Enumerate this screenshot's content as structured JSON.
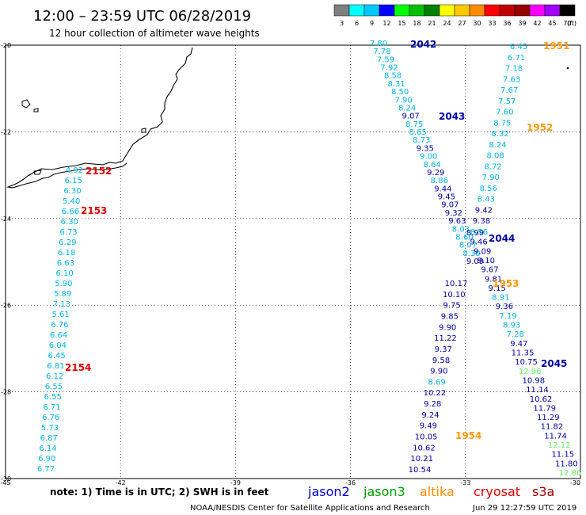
{
  "header": {
    "title": "12:00 – 23:59 UTC 06/28/2019",
    "subtitle": "12 hour collection of altimeter wave heights"
  },
  "legend": {
    "unit": "(ft)",
    "labels": [
      "3",
      "6",
      "9",
      "12",
      "15",
      "18",
      "21",
      "24",
      "27",
      "30",
      "33",
      "36",
      "39",
      "42",
      "45",
      "70"
    ],
    "colors": [
      "#7f7f7f",
      "#00ffff",
      "#00c8ff",
      "#0000ff",
      "#00ff00",
      "#00c000",
      "#008000",
      "#ffff00",
      "#ffc800",
      "#ff8c00",
      "#ff0000",
      "#c00000",
      "#960000",
      "#ff00ff",
      "#a000ff",
      "#000000"
    ]
  },
  "axes": {
    "y_ticks": [
      "-20",
      "-22",
      "-24",
      "-26",
      "-28",
      "-30"
    ],
    "x_ticks": [
      "-45",
      "-42",
      "-39",
      "-36",
      "-33",
      "-30"
    ]
  },
  "note": {
    "text": "note: 1) Time is in UTC; 2) SWH is in feet",
    "satellites": [
      {
        "name": "jason2",
        "color": "#0000d0"
      },
      {
        "name": "jason3",
        "color": "#00a000"
      },
      {
        "name": "altika",
        "color": "#ff8c00"
      },
      {
        "name": "cryosat",
        "color": "#e00000"
      },
      {
        "name": "s3a",
        "color": "#a00000"
      }
    ]
  },
  "footer": {
    "credit": "NOAA/NESDIS Center for Satellite Applications and Research",
    "timestamp": "Jun 29 12:27:59 UTC 2019"
  },
  "colors": {
    "cyan": "#00b4e6",
    "navy": "#0000a0",
    "orange": "#ff9900",
    "red": "#e00000",
    "lightgreen": "#66ee66"
  },
  "passes": [
    {
      "id": "2042",
      "color": "navy",
      "values": [
        "7.80",
        "7.78",
        "7.59",
        "7.92",
        "8.58",
        "8.31",
        "8.50",
        "7.90",
        "8.24",
        "9.07",
        "8.75",
        "8.65",
        "8.73",
        "9.35",
        "9.00",
        "8.64",
        "9.29",
        "8.86",
        "9.44",
        "9.45",
        "9.07",
        "9.32",
        "9.63",
        "8.03",
        "8.60",
        "8.07",
        "8.30",
        "9.09"
      ],
      "value_colors": [
        "cyan",
        "cyan",
        "cyan",
        "cyan",
        "cyan",
        "cyan",
        "cyan",
        "cyan",
        "cyan",
        "navy",
        "cyan",
        "cyan",
        "cyan",
        "navy",
        "cyan",
        "cyan",
        "navy",
        "cyan",
        "navy",
        "navy",
        "navy",
        "navy",
        "navy",
        "cyan",
        "cyan",
        "cyan",
        "cyan",
        "navy"
      ]
    },
    {
      "id": "2043",
      "color": "navy",
      "values": [],
      "value_colors": []
    },
    {
      "id": "2044",
      "color": "navy",
      "values": [
        "8.99",
        "9.46",
        "9.09",
        "9.10",
        "9.67",
        "9.81",
        "9.15",
        "8.91",
        "9.36",
        "7.19",
        "8.93",
        "7.28",
        "9.47",
        "11.35",
        "10.75",
        "12.96",
        "10.98",
        "11.14",
        "10.62",
        "11.79",
        "11.29",
        "11.82",
        "11.74",
        "12.12",
        "11.15",
        "11.80",
        "12.86"
      ],
      "value_colors": [
        "navy",
        "navy",
        "navy",
        "navy",
        "navy",
        "navy",
        "navy",
        "cyan",
        "navy",
        "cyan",
        "cyan",
        "cyan",
        "navy",
        "navy",
        "navy",
        "lightgreen",
        "navy",
        "navy",
        "navy",
        "navy",
        "navy",
        "navy",
        "navy",
        "lightgreen",
        "navy",
        "navy",
        "lightgreen"
      ]
    },
    {
      "id": "2045",
      "color": "navy",
      "values": [
        "10.17",
        "10.10",
        "9.75",
        "9.85",
        "9.90",
        "11.22",
        "9.37",
        "9.58",
        "9.90",
        "8.69",
        "10.22",
        "9.28",
        "9.24",
        "9.49",
        "10.05",
        "10.62",
        "10.21",
        "10.54"
      ],
      "value_colors": [
        "navy",
        "navy",
        "navy",
        "navy",
        "navy",
        "navy",
        "navy",
        "navy",
        "navy",
        "cyan",
        "navy",
        "navy",
        "navy",
        "navy",
        "navy",
        "navy",
        "navy",
        "navy"
      ]
    },
    {
      "id": "1951",
      "color": "orange",
      "values": [
        "6.45",
        "6.71",
        "7.18",
        "7.63",
        "7.67",
        "7.57",
        "7.60",
        "8.75",
        "8.32",
        "8.24",
        "8.08",
        "8.72",
        "7.90",
        "8.56",
        "8.43",
        "9.42",
        "9.38",
        "8.56"
      ],
      "value_colors": [
        "cyan",
        "cyan",
        "cyan",
        "cyan",
        "cyan",
        "cyan",
        "cyan",
        "cyan",
        "cyan",
        "cyan",
        "cyan",
        "cyan",
        "cyan",
        "cyan",
        "cyan",
        "navy",
        "navy",
        "cyan"
      ]
    },
    {
      "id": "1952",
      "color": "orange",
      "values": [],
      "value_colors": []
    },
    {
      "id": "1953",
      "color": "orange",
      "values": [],
      "value_colors": []
    },
    {
      "id": "1954",
      "color": "orange",
      "values": [],
      "value_colors": []
    },
    {
      "id": "2152",
      "color": "red",
      "values": [
        "4.92",
        "6.15",
        "6.30",
        "5.40",
        "6.66",
        "6.30",
        "6.73",
        "6.29",
        "6.18",
        "6.63",
        "6.10",
        "5.90",
        "5.89",
        "7.13",
        "5.61",
        "6.76",
        "6.64",
        "6.04",
        "6.45",
        "6.81",
        "6.12",
        "6.55",
        "6.55",
        "6.71",
        "6.76",
        "5.73",
        "6.87",
        "6.14",
        "6.90",
        "6.77"
      ],
      "value_colors": [
        "cyan",
        "cyan",
        "cyan",
        "cyan",
        "cyan",
        "cyan",
        "cyan",
        "cyan",
        "cyan",
        "cyan",
        "cyan",
        "cyan",
        "cyan",
        "cyan",
        "cyan",
        "cyan",
        "cyan",
        "cyan",
        "cyan",
        "cyan",
        "cyan",
        "cyan",
        "cyan",
        "cyan",
        "cyan",
        "cyan",
        "cyan",
        "cyan",
        "cyan",
        "cyan"
      ]
    },
    {
      "id": "2153",
      "color": "red",
      "values": [],
      "value_colors": []
    },
    {
      "id": "2154",
      "color": "red",
      "values": [],
      "value_colors": []
    }
  ]
}
